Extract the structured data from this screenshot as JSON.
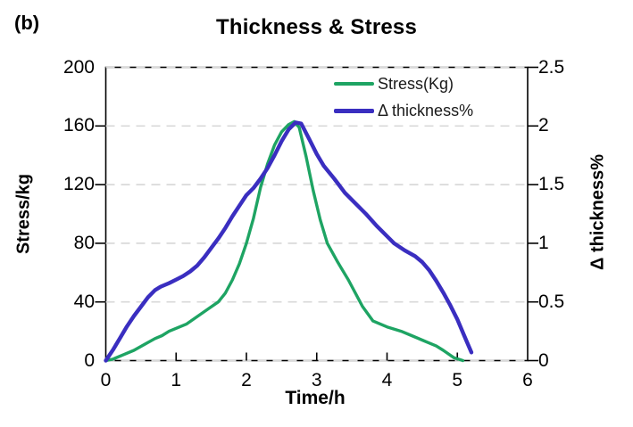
{
  "panel_label": "(b)",
  "title": "Thickness & Stress",
  "axes": {
    "x_title": "Time/h",
    "y_left_title": "Stress/kg",
    "y_right_title": "Δ thickness%"
  },
  "legend": {
    "items": [
      {
        "label": "Stress(Kg)",
        "color": "#1ea463",
        "thickness": 4
      },
      {
        "label": "Δ thickness%",
        "color": "#3a2ec0",
        "thickness": 5
      }
    ]
  },
  "colors": {
    "stress_line": "#1ea463",
    "thickness_line": "#3a2ec0",
    "gridline": "#d9d9d9",
    "axis": "#000000",
    "background": "#ffffff"
  },
  "chart_data": {
    "type": "line",
    "title": "Thickness & Stress",
    "xlabel": "Time/h",
    "ylabel_left": "Stress/kg",
    "ylabel_right": "Δ thickness%",
    "x_range": [
      0,
      6
    ],
    "x_ticks": [
      0,
      1,
      2,
      3,
      4,
      5,
      6
    ],
    "y_left_range": [
      0,
      200
    ],
    "y_left_ticks": [
      0,
      40,
      80,
      120,
      160,
      200
    ],
    "y_right_range": [
      0,
      2.5
    ],
    "y_right_ticks": [
      0,
      0.5,
      1,
      1.5,
      2,
      2.5
    ],
    "grid": "horizontal-dashed",
    "legend_position": "top-right-inside",
    "series": [
      {
        "name": "Stress(Kg)",
        "axis": "left",
        "color": "#1ea463",
        "width": 3.4,
        "points": [
          [
            0,
            0
          ],
          [
            0.1,
            1
          ],
          [
            0.25,
            4
          ],
          [
            0.4,
            7
          ],
          [
            0.55,
            11
          ],
          [
            0.7,
            15
          ],
          [
            0.8,
            17
          ],
          [
            0.9,
            20
          ],
          [
            1.0,
            22
          ],
          [
            1.15,
            25
          ],
          [
            1.3,
            30
          ],
          [
            1.45,
            35
          ],
          [
            1.6,
            40
          ],
          [
            1.7,
            46
          ],
          [
            1.8,
            55
          ],
          [
            1.9,
            66
          ],
          [
            2.0,
            80
          ],
          [
            2.1,
            97
          ],
          [
            2.2,
            118
          ],
          [
            2.3,
            134
          ],
          [
            2.4,
            147
          ],
          [
            2.5,
            156
          ],
          [
            2.6,
            161
          ],
          [
            2.68,
            163
          ],
          [
            2.75,
            159
          ],
          [
            2.85,
            139
          ],
          [
            2.95,
            116
          ],
          [
            3.05,
            96
          ],
          [
            3.15,
            80
          ],
          [
            3.3,
            67
          ],
          [
            3.45,
            55
          ],
          [
            3.65,
            37
          ],
          [
            3.8,
            27
          ],
          [
            4.0,
            23
          ],
          [
            4.2,
            20
          ],
          [
            4.35,
            17
          ],
          [
            4.5,
            14
          ],
          [
            4.6,
            12
          ],
          [
            4.7,
            10
          ],
          [
            4.8,
            7
          ],
          [
            4.95,
            2
          ],
          [
            5.08,
            0
          ]
        ]
      },
      {
        "name": "Δ thickness%",
        "axis": "right",
        "color": "#3a2ec0",
        "width": 4.4,
        "points": [
          [
            0,
            0
          ],
          [
            0.1,
            0.09
          ],
          [
            0.2,
            0.19
          ],
          [
            0.3,
            0.29
          ],
          [
            0.4,
            0.38
          ],
          [
            0.5,
            0.46
          ],
          [
            0.6,
            0.54
          ],
          [
            0.7,
            0.6
          ],
          [
            0.78,
            0.63
          ],
          [
            0.9,
            0.66
          ],
          [
            1.0,
            0.69
          ],
          [
            1.1,
            0.72
          ],
          [
            1.2,
            0.76
          ],
          [
            1.3,
            0.81
          ],
          [
            1.4,
            0.88
          ],
          [
            1.5,
            0.96
          ],
          [
            1.6,
            1.04
          ],
          [
            1.7,
            1.13
          ],
          [
            1.8,
            1.23
          ],
          [
            1.9,
            1.32
          ],
          [
            2.0,
            1.41
          ],
          [
            2.1,
            1.47
          ],
          [
            2.2,
            1.55
          ],
          [
            2.3,
            1.64
          ],
          [
            2.4,
            1.75
          ],
          [
            2.5,
            1.87
          ],
          [
            2.6,
            1.97
          ],
          [
            2.7,
            2.03
          ],
          [
            2.78,
            2.02
          ],
          [
            2.9,
            1.88
          ],
          [
            3.0,
            1.76
          ],
          [
            3.1,
            1.66
          ],
          [
            3.25,
            1.55
          ],
          [
            3.4,
            1.43
          ],
          [
            3.55,
            1.34
          ],
          [
            3.7,
            1.25
          ],
          [
            3.85,
            1.15
          ],
          [
            4.0,
            1.06
          ],
          [
            4.1,
            1.0
          ],
          [
            4.25,
            0.94
          ],
          [
            4.4,
            0.89
          ],
          [
            4.5,
            0.84
          ],
          [
            4.6,
            0.77
          ],
          [
            4.7,
            0.68
          ],
          [
            4.8,
            0.58
          ],
          [
            4.9,
            0.47
          ],
          [
            5.0,
            0.35
          ],
          [
            5.1,
            0.21
          ],
          [
            5.2,
            0.07
          ]
        ]
      }
    ]
  }
}
